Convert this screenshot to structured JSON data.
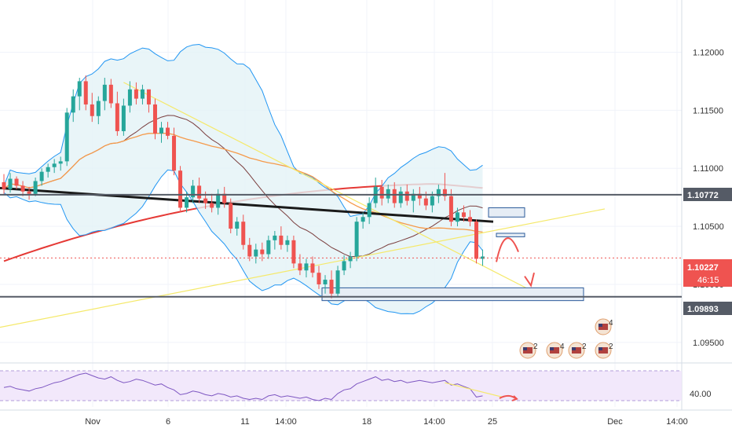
{
  "colors": {
    "up": "#26a69a",
    "down": "#ef5350",
    "bollinger": "#2196f3",
    "bollinger_fill": "#e3f2f6",
    "ma_fast": "#7b3f3f",
    "ma_mid": "#f59a4b",
    "ma_slow": "#e53935",
    "trend_black": "#1a1a1a",
    "yellow": "#f5e96b",
    "level_line": "#555b66",
    "price_line": "#ef5350",
    "rsi_line": "#7e57c2",
    "rsi_fill": "#f1e6fb",
    "zone_fill": "#e6edf5",
    "zone_stroke": "#2b5a9a"
  },
  "chart_data": [
    {
      "type": "line",
      "title": "",
      "ylim": [
        1.0935,
        1.1245
      ],
      "y_ticks": [
        "1.12000",
        "1.11500",
        "1.11000",
        "1.10500",
        "1.10000",
        "1.09500"
      ],
      "x_ticks": [
        "Nov",
        "6",
        "11",
        "14:00",
        "18",
        "14:00",
        "25",
        "Dec",
        "14:00"
      ],
      "labels": {
        "level_high": "1.10772",
        "current_price": "1.10227",
        "countdown": "46:15",
        "level_low": "1.09893"
      },
      "levels": [
        1.10772,
        1.09893
      ],
      "current_price": 1.10227,
      "candles": [
        [
          1.1088,
          1.1095,
          1.1078,
          1.1082
        ],
        [
          1.1082,
          1.1096,
          1.1079,
          1.1091
        ],
        [
          1.1091,
          1.1093,
          1.1082,
          1.1085
        ],
        [
          1.1085,
          1.1089,
          1.1076,
          1.108
        ],
        [
          1.108,
          1.1084,
          1.1073,
          1.1078
        ],
        [
          1.1078,
          1.1092,
          1.1076,
          1.1089
        ],
        [
          1.1089,
          1.11,
          1.1085,
          1.1097
        ],
        [
          1.1097,
          1.1104,
          1.1092,
          1.1101
        ],
        [
          1.1101,
          1.1108,
          1.1096,
          1.1104
        ],
        [
          1.1104,
          1.111,
          1.1098,
          1.1106
        ],
        [
          1.1106,
          1.1152,
          1.1102,
          1.1148
        ],
        [
          1.1148,
          1.1168,
          1.114,
          1.1162
        ],
        [
          1.1162,
          1.1178,
          1.115,
          1.1175
        ],
        [
          1.1175,
          1.118,
          1.115,
          1.1155
        ],
        [
          1.1155,
          1.1165,
          1.114,
          1.1145
        ],
        [
          1.1145,
          1.1162,
          1.1138,
          1.1158
        ],
        [
          1.1158,
          1.1178,
          1.115,
          1.1172
        ],
        [
          1.1172,
          1.1177,
          1.1152,
          1.1156
        ],
        [
          1.1156,
          1.1166,
          1.1128,
          1.1132
        ],
        [
          1.1132,
          1.116,
          1.1128,
          1.1154
        ],
        [
          1.1154,
          1.1175,
          1.1148,
          1.1168
        ],
        [
          1.1168,
          1.1174,
          1.1155,
          1.116
        ],
        [
          1.116,
          1.1172,
          1.1155,
          1.1168
        ],
        [
          1.1168,
          1.1166,
          1.1148,
          1.1155
        ],
        [
          1.1155,
          1.116,
          1.1125,
          1.113
        ],
        [
          1.113,
          1.114,
          1.1122,
          1.1135
        ],
        [
          1.1135,
          1.114,
          1.1125,
          1.1128
        ],
        [
          1.1128,
          1.1135,
          1.1094,
          1.1098
        ],
        [
          1.1098,
          1.1102,
          1.1062,
          1.1066
        ],
        [
          1.1066,
          1.108,
          1.1062,
          1.1075
        ],
        [
          1.1075,
          1.109,
          1.107,
          1.1085
        ],
        [
          1.1085,
          1.1092,
          1.107,
          1.1074
        ],
        [
          1.1074,
          1.108,
          1.1065,
          1.107
        ],
        [
          1.107,
          1.1078,
          1.1062,
          1.1066
        ],
        [
          1.1066,
          1.1082,
          1.106,
          1.1078
        ],
        [
          1.1078,
          1.1084,
          1.1066,
          1.107
        ],
        [
          1.107,
          1.1074,
          1.1044,
          1.1048
        ],
        [
          1.1048,
          1.1058,
          1.1042,
          1.1054
        ],
        [
          1.1054,
          1.106,
          1.103,
          1.1034
        ],
        [
          1.1034,
          1.104,
          1.102,
          1.1024
        ],
        [
          1.1024,
          1.1035,
          1.1018,
          1.103
        ],
        [
          1.103,
          1.1036,
          1.102,
          1.1026
        ],
        [
          1.1026,
          1.1042,
          1.1022,
          1.1038
        ],
        [
          1.1038,
          1.1046,
          1.103,
          1.1042
        ],
        [
          1.1042,
          1.105,
          1.103,
          1.1034
        ],
        [
          1.1034,
          1.1042,
          1.1028,
          1.1038
        ],
        [
          1.1038,
          1.1042,
          1.1014,
          1.1018
        ],
        [
          1.1018,
          1.1026,
          1.1008,
          1.1012
        ],
        [
          1.1012,
          1.1022,
          1.1006,
          1.1018
        ],
        [
          1.1018,
          1.1024,
          1.1006,
          1.101
        ],
        [
          1.101,
          1.1016,
          1.0996,
          1.1
        ],
        [
          1.1,
          1.1008,
          1.0992,
          1.1004
        ],
        [
          1.1004,
          1.1012,
          1.0988,
          1.0992
        ],
        [
          1.0992,
          1.1016,
          1.099,
          1.1012
        ],
        [
          1.1012,
          1.1025,
          1.1008,
          1.102
        ],
        [
          1.102,
          1.1028,
          1.1014,
          1.1024
        ],
        [
          1.1024,
          1.1058,
          1.102,
          1.1054
        ],
        [
          1.1054,
          1.1062,
          1.1048,
          1.1058
        ],
        [
          1.1058,
          1.1075,
          1.1052,
          1.107
        ],
        [
          1.107,
          1.1092,
          1.1066,
          1.1084
        ],
        [
          1.1084,
          1.109,
          1.1068,
          1.1074
        ],
        [
          1.1074,
          1.1086,
          1.107,
          1.1082
        ],
        [
          1.1082,
          1.1088,
          1.1066,
          1.107
        ],
        [
          1.107,
          1.1084,
          1.1066,
          1.108
        ],
        [
          1.108,
          1.1086,
          1.1068,
          1.1072
        ],
        [
          1.1072,
          1.1082,
          1.1062,
          1.1078
        ],
        [
          1.1078,
          1.1084,
          1.1068,
          1.1074
        ],
        [
          1.1074,
          1.108,
          1.1064,
          1.1068
        ],
        [
          1.1068,
          1.108,
          1.1062,
          1.1076
        ],
        [
          1.1076,
          1.1086,
          1.107,
          1.1082
        ],
        [
          1.1082,
          1.1096,
          1.1072,
          1.1076
        ],
        [
          1.1076,
          1.1082,
          1.105,
          1.1054
        ],
        [
          1.1054,
          1.1066,
          1.105,
          1.1062
        ],
        [
          1.1062,
          1.1068,
          1.1054,
          1.1058
        ],
        [
          1.1058,
          1.1064,
          1.105,
          1.1054
        ],
        [
          1.1054,
          1.1056,
          1.1018,
          1.1022
        ],
        [
          1.1022,
          1.103,
          1.1016,
          1.1024
        ]
      ],
      "rsi": {
        "label": "40.00",
        "values": [
          52,
          54,
          50,
          48,
          46,
          50,
          52,
          56,
          60,
          62,
          66,
          70,
          74,
          76,
          72,
          68,
          66,
          70,
          64,
          60,
          62,
          66,
          64,
          60,
          56,
          58,
          52,
          48,
          40,
          42,
          46,
          44,
          40,
          38,
          42,
          40,
          36,
          38,
          34,
          32,
          34,
          32,
          38,
          40,
          36,
          38,
          36,
          34,
          36,
          32,
          30,
          34,
          32,
          42,
          48,
          50,
          58,
          62,
          66,
          70,
          64,
          66,
          62,
          64,
          60,
          62,
          64,
          62,
          60,
          62,
          64,
          56,
          58,
          54,
          50,
          36,
          38
        ]
      },
      "event_badges": [
        "2",
        "4",
        "2",
        "4",
        "2"
      ]
    }
  ]
}
